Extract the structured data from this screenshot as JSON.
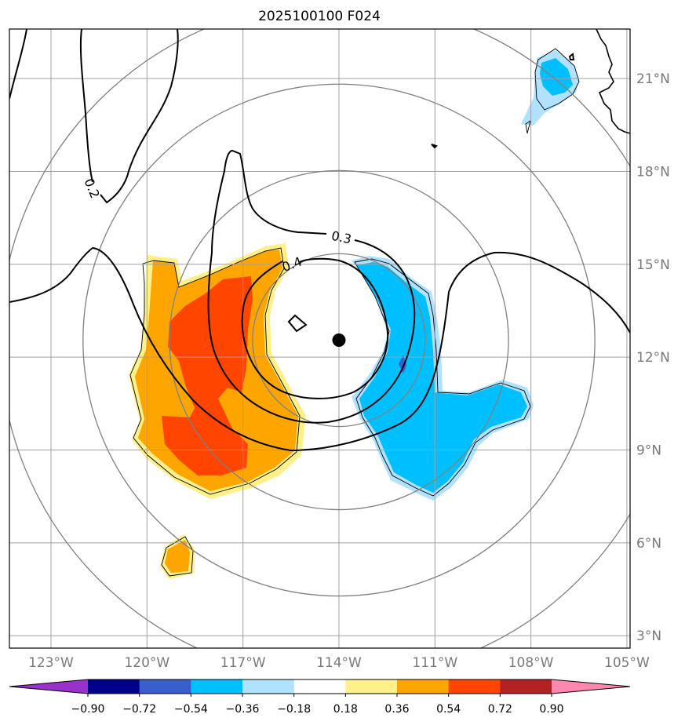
{
  "chart_data": {
    "type": "map",
    "title": "2025100100 F024",
    "projection": "lat-lon",
    "lon_range": [
      -124.3,
      -104.9
    ],
    "lat_range": [
      2.6,
      22.6
    ],
    "x_ticks": [
      {
        "value": -123,
        "label": "123°W"
      },
      {
        "value": -120,
        "label": "120°W"
      },
      {
        "value": -117,
        "label": "117°W"
      },
      {
        "value": -114,
        "label": "114°W"
      },
      {
        "value": -111,
        "label": "111°W"
      },
      {
        "value": -108,
        "label": "108°W"
      },
      {
        "value": -105,
        "label": "105°W"
      }
    ],
    "y_ticks": [
      {
        "value": 3,
        "label": "3°N"
      },
      {
        "value": 6,
        "label": "6°N"
      },
      {
        "value": 9,
        "label": "9°N"
      },
      {
        "value": 12,
        "label": "12°N"
      },
      {
        "value": 15,
        "label": "15°N"
      },
      {
        "value": 18,
        "label": "18°N"
      },
      {
        "value": 21,
        "label": "21°N"
      }
    ],
    "grid": true,
    "storm_center": {
      "lon": -114.0,
      "lat": 12.55
    },
    "range_ring_radii_deg": [
      2.7,
      5.3,
      8.0,
      10.6
    ],
    "contour_lines": [
      {
        "level": 0.2,
        "label": "0.2"
      },
      {
        "level": 0.3,
        "label": "0.3"
      },
      {
        "level": 0.4,
        "label": "0.4"
      }
    ],
    "colorbar": {
      "orientation": "horizontal",
      "extend": "both",
      "ticks": [
        "−0.90",
        "−0.72",
        "−0.54",
        "−0.36",
        "−0.18",
        "0.18",
        "0.36",
        "0.54",
        "0.72",
        "0.90"
      ],
      "colors": [
        "#9932cc",
        "#00008b",
        "#3a5fcd",
        "#00bfff",
        "#b0e2ff",
        "#ffffff",
        "#fff08a",
        "#ffa500",
        "#ff4500",
        "#b22222",
        "#ff88b0"
      ]
    }
  }
}
